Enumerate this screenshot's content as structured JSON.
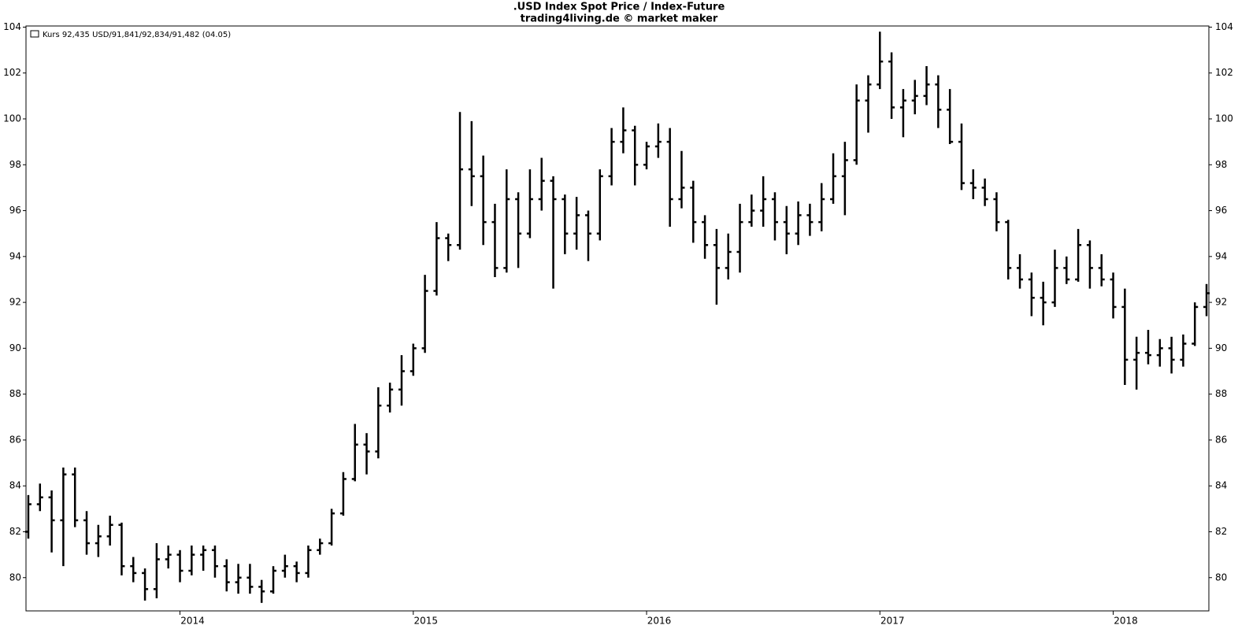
{
  "chart_data": {
    "type": "ohlc",
    "title": ".USD Index Spot Price / Index-Future",
    "subtitle": "trading4living.de © market maker",
    "legend": "Kurs 92,435 USD/91,841/92,834/91,482 (04.05)",
    "color": "#000000",
    "y_axis_both_sides": true,
    "xlim": [
      2013.34,
      2018.41
    ],
    "xticks": [
      2014,
      2015,
      2016,
      2017,
      2018
    ],
    "ylim": [
      78.55,
      104.05
    ],
    "yticks": [
      80,
      82,
      84,
      86,
      88,
      90,
      92,
      94,
      96,
      98,
      100,
      102,
      104
    ],
    "x": [
      2013.35,
      2013.4,
      2013.45,
      2013.5,
      2013.55,
      2013.6,
      2013.65,
      2013.7,
      2013.75,
      2013.8,
      2013.85,
      2013.9,
      2013.95,
      2014.0,
      2014.05,
      2014.1,
      2014.15,
      2014.2,
      2014.25,
      2014.3,
      2014.35,
      2014.4,
      2014.45,
      2014.5,
      2014.55,
      2014.6,
      2014.65,
      2014.7,
      2014.75,
      2014.8,
      2014.85,
      2014.9,
      2014.95,
      2015.0,
      2015.05,
      2015.1,
      2015.15,
      2015.2,
      2015.25,
      2015.3,
      2015.35,
      2015.4,
      2015.45,
      2015.5,
      2015.55,
      2015.6,
      2015.65,
      2015.7,
      2015.75,
      2015.8,
      2015.85,
      2015.9,
      2015.95,
      2016.0,
      2016.05,
      2016.1,
      2016.15,
      2016.2,
      2016.25,
      2016.3,
      2016.35,
      2016.4,
      2016.45,
      2016.5,
      2016.55,
      2016.6,
      2016.65,
      2016.7,
      2016.75,
      2016.8,
      2016.85,
      2016.9,
      2016.95,
      2017.0,
      2017.05,
      2017.1,
      2017.15,
      2017.2,
      2017.25,
      2017.3,
      2017.35,
      2017.4,
      2017.45,
      2017.5,
      2017.55,
      2017.6,
      2017.65,
      2017.7,
      2017.75,
      2017.8,
      2017.85,
      2017.9,
      2017.95,
      2018.0,
      2018.05,
      2018.1,
      2018.15,
      2018.2,
      2018.25,
      2018.3,
      2018.35,
      2018.4
    ],
    "open": [
      82.0,
      83.2,
      83.5,
      82.5,
      84.5,
      82.5,
      81.5,
      81.8,
      82.3,
      80.5,
      80.2,
      79.5,
      80.8,
      81.0,
      80.3,
      81.0,
      81.2,
      80.5,
      79.8,
      80.0,
      79.6,
      79.4,
      80.3,
      80.5,
      80.2,
      81.2,
      81.5,
      82.8,
      84.3,
      85.8,
      85.5,
      87.5,
      88.2,
      89.0,
      90.0,
      92.5,
      94.8,
      94.5,
      97.8,
      97.5,
      95.5,
      93.5,
      96.5,
      95.0,
      96.5,
      97.3,
      96.5,
      95.0,
      95.8,
      95.0,
      97.5,
      99.0,
      99.5,
      98.0,
      98.8,
      99.0,
      96.5,
      97.0,
      95.5,
      94.5,
      93.5,
      94.2,
      95.5,
      96.0,
      96.5,
      95.5,
      95.0,
      95.8,
      95.5,
      96.5,
      97.5,
      98.2,
      100.8,
      101.5,
      102.5,
      100.5,
      100.8,
      101.0,
      101.5,
      100.4,
      99.0,
      97.2,
      97.0,
      96.5,
      95.5,
      93.5,
      93.0,
      92.2,
      92.0,
      93.5,
      93.0,
      94.5,
      93.5,
      93.0,
      91.8,
      89.5,
      89.8,
      89.7,
      90.0,
      89.5,
      90.2,
      91.8
    ],
    "high": [
      83.6,
      84.1,
      83.8,
      84.8,
      84.8,
      82.9,
      82.3,
      82.7,
      82.4,
      80.9,
      80.4,
      81.5,
      81.4,
      81.2,
      81.4,
      81.4,
      81.4,
      80.8,
      80.6,
      80.6,
      79.9,
      80.5,
      81.0,
      80.7,
      81.4,
      81.7,
      83.0,
      84.6,
      86.7,
      86.3,
      88.3,
      88.5,
      89.7,
      90.2,
      93.2,
      95.5,
      95.0,
      100.3,
      99.9,
      98.4,
      96.3,
      97.8,
      96.8,
      97.8,
      98.3,
      97.5,
      96.7,
      96.6,
      96.0,
      97.8,
      99.6,
      100.5,
      99.7,
      99.0,
      99.8,
      99.6,
      98.6,
      97.3,
      95.8,
      95.2,
      95.0,
      96.3,
      96.7,
      97.5,
      96.8,
      96.2,
      96.4,
      96.3,
      97.2,
      98.5,
      99.0,
      101.5,
      101.9,
      103.8,
      102.9,
      101.3,
      101.7,
      102.3,
      101.9,
      101.3,
      99.8,
      97.8,
      97.4,
      96.8,
      95.6,
      94.1,
      93.3,
      92.9,
      94.3,
      94.0,
      95.2,
      94.7,
      94.1,
      93.3,
      92.6,
      90.5,
      90.8,
      90.4,
      90.5,
      90.6,
      92.0,
      92.8
    ],
    "low": [
      81.7,
      82.9,
      81.1,
      80.5,
      82.2,
      81.0,
      80.9,
      81.4,
      80.1,
      79.8,
      79.0,
      79.1,
      80.4,
      79.8,
      80.1,
      80.3,
      80.0,
      79.4,
      79.3,
      79.3,
      78.9,
      79.3,
      80.0,
      79.8,
      80.0,
      81.0,
      81.4,
      82.7,
      84.2,
      84.5,
      85.2,
      87.2,
      87.5,
      88.8,
      89.8,
      92.3,
      93.8,
      94.3,
      96.2,
      94.5,
      93.1,
      93.3,
      93.5,
      94.8,
      96.0,
      92.6,
      94.1,
      94.3,
      93.8,
      94.7,
      97.1,
      98.5,
      97.1,
      97.8,
      98.3,
      95.3,
      96.1,
      94.6,
      93.9,
      91.9,
      93.0,
      93.3,
      95.3,
      95.3,
      94.7,
      94.1,
      94.5,
      94.9,
      95.1,
      96.3,
      95.8,
      98.0,
      99.4,
      101.3,
      100.0,
      99.2,
      100.2,
      100.6,
      99.6,
      98.9,
      96.9,
      96.5,
      96.2,
      95.1,
      93.0,
      92.6,
      91.4,
      91.0,
      91.8,
      92.8,
      92.9,
      92.6,
      92.7,
      91.3,
      88.4,
      88.2,
      89.3,
      89.2,
      88.9,
      89.2,
      90.1,
      91.4
    ],
    "close": [
      83.2,
      83.5,
      82.5,
      84.5,
      82.5,
      81.5,
      81.8,
      82.3,
      80.5,
      80.2,
      79.5,
      80.8,
      81.0,
      80.3,
      81.0,
      81.2,
      80.5,
      79.8,
      80.0,
      79.6,
      79.4,
      80.3,
      80.5,
      80.2,
      81.2,
      81.5,
      82.8,
      84.3,
      85.8,
      85.5,
      87.5,
      88.2,
      89.0,
      90.0,
      92.5,
      94.8,
      94.5,
      97.8,
      97.5,
      95.5,
      93.5,
      96.5,
      95.0,
      96.5,
      97.3,
      96.5,
      95.0,
      95.8,
      95.0,
      97.5,
      99.0,
      99.5,
      98.0,
      98.8,
      99.0,
      96.5,
      97.0,
      95.5,
      94.5,
      93.5,
      94.2,
      95.5,
      96.0,
      96.5,
      95.5,
      95.0,
      95.8,
      95.5,
      96.5,
      97.5,
      98.2,
      100.8,
      101.5,
      102.5,
      100.5,
      100.8,
      101.0,
      101.5,
      100.4,
      99.0,
      97.2,
      97.0,
      96.5,
      95.5,
      93.5,
      93.0,
      92.2,
      92.0,
      93.5,
      93.0,
      94.5,
      93.5,
      93.0,
      91.8,
      89.5,
      89.8,
      89.7,
      90.0,
      89.5,
      90.2,
      91.8,
      92.4
    ]
  }
}
